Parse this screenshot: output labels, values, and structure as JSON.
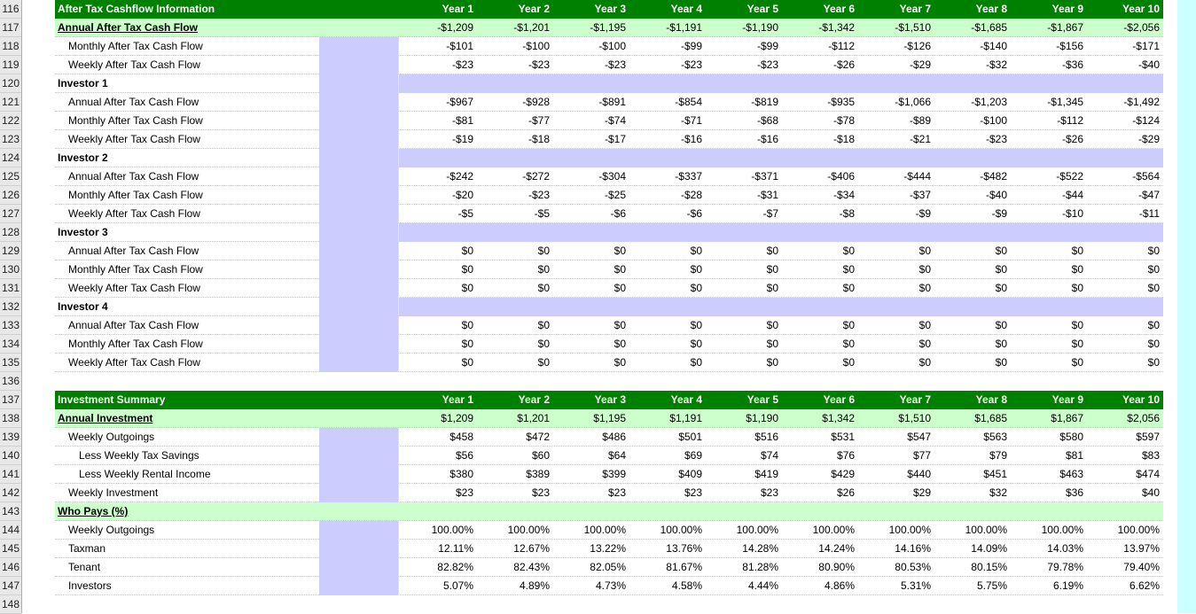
{
  "row_numbers": [
    "116",
    "117",
    "118",
    "119",
    "120",
    "121",
    "122",
    "123",
    "124",
    "125",
    "126",
    "127",
    "128",
    "129",
    "130",
    "131",
    "132",
    "133",
    "134",
    "135",
    "136",
    "137",
    "138",
    "139",
    "140",
    "141",
    "142",
    "143",
    "144",
    "145",
    "146",
    "147",
    "148"
  ],
  "cashflow": {
    "title": "After Tax Cashflow Information",
    "years": [
      "Year 1",
      "Year 2",
      "Year 3",
      "Year 4",
      "Year 5",
      "Year 6",
      "Year 7",
      "Year 8",
      "Year 9",
      "Year 10"
    ],
    "annual": {
      "label": "Annual After Tax Cash Flow",
      "values": [
        "-$1,209",
        "-$1,201",
        "-$1,195",
        "-$1,191",
        "-$1,190",
        "-$1,342",
        "-$1,510",
        "-$1,685",
        "-$1,867",
        "-$2,056"
      ]
    },
    "monthly": {
      "label": "Monthly After Tax Cash Flow",
      "values": [
        "-$101",
        "-$100",
        "-$100",
        "-$99",
        "-$99",
        "-$112",
        "-$126",
        "-$140",
        "-$156",
        "-$171"
      ]
    },
    "weekly": {
      "label": "Weekly After Tax Cash Flow",
      "values": [
        "-$23",
        "-$23",
        "-$23",
        "-$23",
        "-$23",
        "-$26",
        "-$29",
        "-$32",
        "-$36",
        "-$40"
      ]
    },
    "investors": [
      {
        "name": "Investor 1",
        "annual": {
          "label": "Annual After Tax Cash Flow",
          "values": [
            "-$967",
            "-$928",
            "-$891",
            "-$854",
            "-$819",
            "-$935",
            "-$1,066",
            "-$1,203",
            "-$1,345",
            "-$1,492"
          ]
        },
        "monthly": {
          "label": "Monthly After Tax Cash Flow",
          "values": [
            "-$81",
            "-$77",
            "-$74",
            "-$71",
            "-$68",
            "-$78",
            "-$89",
            "-$100",
            "-$112",
            "-$124"
          ]
        },
        "weekly": {
          "label": "Weekly After Tax Cash Flow",
          "values": [
            "-$19",
            "-$18",
            "-$17",
            "-$16",
            "-$16",
            "-$18",
            "-$21",
            "-$23",
            "-$26",
            "-$29"
          ]
        }
      },
      {
        "name": "Investor 2",
        "annual": {
          "label": "Annual After Tax Cash Flow",
          "values": [
            "-$242",
            "-$272",
            "-$304",
            "-$337",
            "-$371",
            "-$406",
            "-$444",
            "-$482",
            "-$522",
            "-$564"
          ]
        },
        "monthly": {
          "label": "Monthly After Tax Cash Flow",
          "values": [
            "-$20",
            "-$23",
            "-$25",
            "-$28",
            "-$31",
            "-$34",
            "-$37",
            "-$40",
            "-$44",
            "-$47"
          ]
        },
        "weekly": {
          "label": "Weekly After Tax Cash Flow",
          "values": [
            "-$5",
            "-$5",
            "-$6",
            "-$6",
            "-$7",
            "-$8",
            "-$9",
            "-$9",
            "-$10",
            "-$11"
          ]
        }
      },
      {
        "name": "Investor 3",
        "annual": {
          "label": "Annual After Tax Cash Flow",
          "values": [
            "$0",
            "$0",
            "$0",
            "$0",
            "$0",
            "$0",
            "$0",
            "$0",
            "$0",
            "$0"
          ]
        },
        "monthly": {
          "label": "Monthly After Tax Cash Flow",
          "values": [
            "$0",
            "$0",
            "$0",
            "$0",
            "$0",
            "$0",
            "$0",
            "$0",
            "$0",
            "$0"
          ]
        },
        "weekly": {
          "label": "Weekly After Tax Cash Flow",
          "values": [
            "$0",
            "$0",
            "$0",
            "$0",
            "$0",
            "$0",
            "$0",
            "$0",
            "$0",
            "$0"
          ]
        }
      },
      {
        "name": "Investor 4",
        "annual": {
          "label": "Annual After Tax Cash Flow",
          "values": [
            "$0",
            "$0",
            "$0",
            "$0",
            "$0",
            "$0",
            "$0",
            "$0",
            "$0",
            "$0"
          ]
        },
        "monthly": {
          "label": "Monthly After Tax Cash Flow",
          "values": [
            "$0",
            "$0",
            "$0",
            "$0",
            "$0",
            "$0",
            "$0",
            "$0",
            "$0",
            "$0"
          ]
        },
        "weekly": {
          "label": "Weekly After Tax Cash Flow",
          "values": [
            "$0",
            "$0",
            "$0",
            "$0",
            "$0",
            "$0",
            "$0",
            "$0",
            "$0",
            "$0"
          ]
        }
      }
    ]
  },
  "summary": {
    "title": "Investment Summary",
    "years": [
      "Year 1",
      "Year 2",
      "Year 3",
      "Year 4",
      "Year 5",
      "Year 6",
      "Year 7",
      "Year 8",
      "Year 9",
      "Year 10"
    ],
    "annual": {
      "label": "Annual Investment",
      "values": [
        "$1,209",
        "$1,201",
        "$1,195",
        "$1,191",
        "$1,190",
        "$1,342",
        "$1,510",
        "$1,685",
        "$1,867",
        "$2,056"
      ]
    },
    "outgoings": {
      "label": "Weekly Outgoings",
      "values": [
        "$458",
        "$472",
        "$486",
        "$501",
        "$516",
        "$531",
        "$547",
        "$563",
        "$580",
        "$597"
      ]
    },
    "tax_savings": {
      "label": "Less Weekly Tax Savings",
      "values": [
        "$56",
        "$60",
        "$64",
        "$69",
        "$74",
        "$76",
        "$77",
        "$79",
        "$81",
        "$83"
      ]
    },
    "rental_income": {
      "label": "Less Weekly Rental Income",
      "values": [
        "$380",
        "$389",
        "$399",
        "$409",
        "$419",
        "$429",
        "$440",
        "$451",
        "$463",
        "$474"
      ]
    },
    "weekly_investment": {
      "label": "Weekly Investment",
      "values": [
        "$23",
        "$23",
        "$23",
        "$23",
        "$23",
        "$26",
        "$29",
        "$32",
        "$36",
        "$40"
      ]
    },
    "who_pays": {
      "label": "Who Pays (%)",
      "outgoings": {
        "label": "Weekly Outgoings",
        "values": [
          "100.00%",
          "100.00%",
          "100.00%",
          "100.00%",
          "100.00%",
          "100.00%",
          "100.00%",
          "100.00%",
          "100.00%",
          "100.00%"
        ]
      },
      "taxman": {
        "label": "Taxman",
        "values": [
          "12.11%",
          "12.67%",
          "13.22%",
          "13.76%",
          "14.28%",
          "14.24%",
          "14.16%",
          "14.09%",
          "14.03%",
          "13.97%"
        ]
      },
      "tenant": {
        "label": "Tenant",
        "values": [
          "82.82%",
          "82.43%",
          "82.05%",
          "81.67%",
          "81.28%",
          "80.90%",
          "80.53%",
          "80.15%",
          "79.78%",
          "79.40%"
        ]
      },
      "investors": {
        "label": "Investors",
        "values": [
          "5.07%",
          "4.89%",
          "4.73%",
          "4.58%",
          "4.44%",
          "4.86%",
          "5.31%",
          "5.75%",
          "6.19%",
          "6.62%"
        ]
      }
    }
  }
}
